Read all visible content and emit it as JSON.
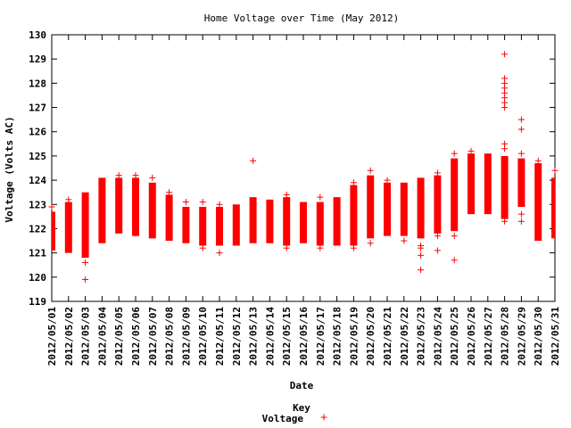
{
  "chart_data": {
    "type": "box",
    "title": "Home Voltage over Time (May 2012)",
    "xlabel": "Date",
    "ylabel": "Voltage (Volts AC)",
    "ylim": [
      119,
      130
    ],
    "yticks": [
      "119",
      "120",
      "121",
      "122",
      "123",
      "124",
      "125",
      "126",
      "127",
      "128",
      "129",
      "130"
    ],
    "grid": false,
    "legend": {
      "title": "Key",
      "placement": "bottom-center"
    },
    "series": [
      {
        "name": "Voltage",
        "color": "#ff0000",
        "marker": "+",
        "days": [
          {
            "date": "2012/05/01",
            "min": 121.1,
            "max": 122.7,
            "outliers": [
              122.9
            ]
          },
          {
            "date": "2012/05/02",
            "min": 121.0,
            "max": 123.1,
            "outliers": [
              123.2
            ]
          },
          {
            "date": "2012/05/03",
            "min": 120.8,
            "max": 123.5,
            "outliers": [
              119.9,
              120.6
            ]
          },
          {
            "date": "2012/05/04",
            "min": 121.4,
            "max": 124.1,
            "outliers": [
              121.6
            ]
          },
          {
            "date": "2012/05/05",
            "min": 121.8,
            "max": 124.1,
            "outliers": [
              124.2
            ]
          },
          {
            "date": "2012/05/06",
            "min": 121.7,
            "max": 124.1,
            "outliers": [
              124.2,
              121.8
            ]
          },
          {
            "date": "2012/05/07",
            "min": 121.6,
            "max": 123.9,
            "outliers": [
              124.1
            ]
          },
          {
            "date": "2012/05/08",
            "min": 121.5,
            "max": 123.4,
            "outliers": [
              123.5
            ]
          },
          {
            "date": "2012/05/09",
            "min": 121.4,
            "max": 122.9,
            "outliers": [
              123.1
            ]
          },
          {
            "date": "2012/05/10",
            "min": 121.3,
            "max": 122.9,
            "outliers": [
              121.2,
              123.1
            ]
          },
          {
            "date": "2012/05/11",
            "min": 121.3,
            "max": 122.9,
            "outliers": [
              121.0,
              123.0
            ]
          },
          {
            "date": "2012/05/12",
            "min": 121.3,
            "max": 123.0,
            "outliers": []
          },
          {
            "date": "2012/05/13",
            "min": 121.4,
            "max": 123.3,
            "outliers": [
              124.8
            ]
          },
          {
            "date": "2012/05/14",
            "min": 121.4,
            "max": 123.2,
            "outliers": []
          },
          {
            "date": "2012/05/15",
            "min": 121.3,
            "max": 123.3,
            "outliers": [
              121.2,
              123.4
            ]
          },
          {
            "date": "2012/05/16",
            "min": 121.4,
            "max": 123.1,
            "outliers": []
          },
          {
            "date": "2012/05/17",
            "min": 121.3,
            "max": 123.1,
            "outliers": [
              121.2,
              123.3
            ]
          },
          {
            "date": "2012/05/18",
            "min": 121.3,
            "max": 123.3,
            "outliers": []
          },
          {
            "date": "2012/05/19",
            "min": 121.3,
            "max": 123.8,
            "outliers": [
              121.2,
              123.9
            ]
          },
          {
            "date": "2012/05/20",
            "min": 121.6,
            "max": 124.2,
            "outliers": [
              121.4,
              124.4
            ]
          },
          {
            "date": "2012/05/21",
            "min": 121.7,
            "max": 123.9,
            "outliers": [
              124.0
            ]
          },
          {
            "date": "2012/05/22",
            "min": 121.7,
            "max": 123.9,
            "outliers": [
              121.5
            ]
          },
          {
            "date": "2012/05/23",
            "min": 121.6,
            "max": 124.1,
            "outliers": [
              120.3,
              120.9,
              121.2,
              121.3
            ]
          },
          {
            "date": "2012/05/24",
            "min": 121.8,
            "max": 124.2,
            "outliers": [
              121.1,
              121.7,
              124.3
            ]
          },
          {
            "date": "2012/05/25",
            "min": 121.9,
            "max": 124.9,
            "outliers": [
              120.7,
              121.7,
              125.1
            ]
          },
          {
            "date": "2012/05/26",
            "min": 122.6,
            "max": 125.1,
            "outliers": [
              125.2
            ]
          },
          {
            "date": "2012/05/27",
            "min": 122.6,
            "max": 125.1,
            "outliers": []
          },
          {
            "date": "2012/05/28",
            "min": 122.4,
            "max": 125.0,
            "outliers": [
              122.3,
              125.3,
              125.5,
              127.0,
              127.2,
              127.4,
              127.6,
              127.8,
              128.0,
              128.2,
              129.2
            ]
          },
          {
            "date": "2012/05/29",
            "min": 122.9,
            "max": 124.9,
            "outliers": [
              122.3,
              122.6,
              125.1,
              126.1,
              126.5
            ]
          },
          {
            "date": "2012/05/30",
            "min": 121.5,
            "max": 124.7,
            "outliers": [
              124.8
            ]
          },
          {
            "date": "2012/05/31",
            "min": 121.6,
            "max": 124.1,
            "outliers": [
              124.4
            ]
          }
        ]
      }
    ]
  }
}
